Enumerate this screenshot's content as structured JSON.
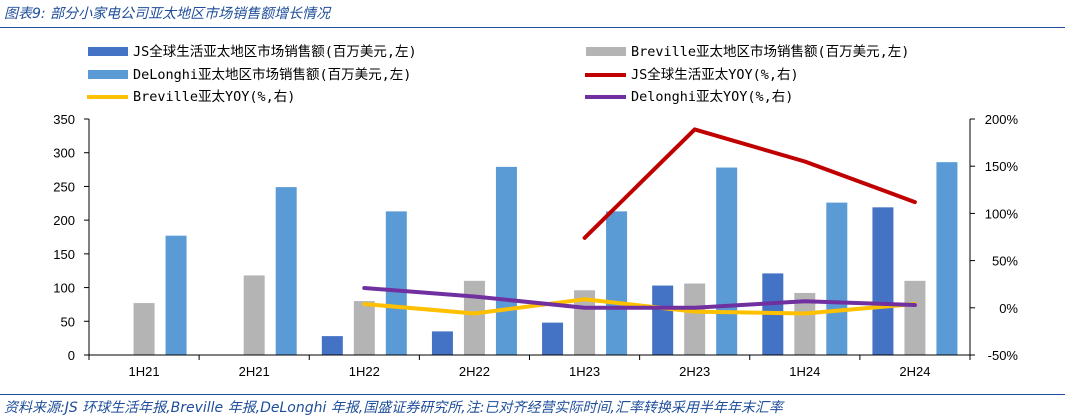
{
  "header": {
    "figure_title": "图表9:  部分小家电公司亚太地区市场销售额增长情况"
  },
  "footer": {
    "source_note": "资料来源:JS 环球生活年报,Breville 年报,DeLonghi 年报,国盛证券研究所,注:已对齐经营实际时间,汇率转换采用半年年末汇率"
  },
  "chart_data": {
    "type": "bar",
    "title": "部分小家电公司亚太地区市场销售额增长情况",
    "categories": [
      "1H21",
      "2H21",
      "1H22",
      "2H22",
      "1H23",
      "2H23",
      "1H24",
      "2H24"
    ],
    "ylim": [
      0,
      350
    ],
    "y_ticks": [
      0,
      50,
      100,
      150,
      200,
      250,
      300,
      350
    ],
    "y_tick_labels": [
      "0",
      "50",
      "100",
      "150",
      "200",
      "250",
      "300",
      "350"
    ],
    "y2lim": [
      -50,
      200
    ],
    "y2_ticks": [
      -50,
      0,
      50,
      100,
      150,
      200
    ],
    "y2_tick_labels": [
      "-50%",
      "0%",
      "50%",
      "100%",
      "150%",
      "200%"
    ],
    "series": [
      {
        "name": "JS全球生活亚太地区市场销售额(百万美元,左)",
        "kind": "bar",
        "axis": "left",
        "color": "#4472c4",
        "values": [
          null,
          null,
          28,
          35,
          48,
          103,
          121,
          219
        ]
      },
      {
        "name": "Breville亚太地区市场销售额(百万美元,左)",
        "kind": "bar",
        "axis": "left",
        "color": "#b4b4b4",
        "values": [
          77,
          118,
          80,
          110,
          96,
          106,
          92,
          110
        ]
      },
      {
        "name": "DeLonghi亚太地区市场销售额(百万美元,左)",
        "kind": "bar",
        "axis": "left",
        "color": "#5b9bd5",
        "values": [
          177,
          249,
          213,
          279,
          213,
          278,
          226,
          286
        ]
      },
      {
        "name": "JS全球生活亚太YOY(%,右)",
        "kind": "line",
        "axis": "right",
        "color": "#c00000",
        "values": [
          null,
          null,
          null,
          null,
          74,
          189,
          155,
          112
        ]
      },
      {
        "name": "Breville亚太YOY(%,右)",
        "kind": "line",
        "axis": "right",
        "color": "#ffc000",
        "values": [
          null,
          null,
          4,
          -6,
          9,
          -4,
          -6,
          4
        ]
      },
      {
        "name": "Delonghi亚太YOY(%,右)",
        "kind": "line",
        "axis": "right",
        "color": "#7030a0",
        "values": [
          null,
          null,
          21,
          12,
          0,
          0,
          7,
          3
        ]
      }
    ],
    "legend": [
      {
        "label": "JS全球生活亚太地区市场销售额(百万美元,左)",
        "kind": "bar",
        "color": "#4472c4"
      },
      {
        "label": "Breville亚太地区市场销售额(百万美元,左)",
        "kind": "bar",
        "color": "#b4b4b4"
      },
      {
        "label": "DeLonghi亚太地区市场销售额(百万美元,左)",
        "kind": "bar",
        "color": "#5b9bd5"
      },
      {
        "label": "JS全球生活亚太YOY(%,右)",
        "kind": "line",
        "color": "#c00000"
      },
      {
        "label": "Breville亚太YOY(%,右)",
        "kind": "line",
        "color": "#ffc000"
      },
      {
        "label": "Delonghi亚太YOY(%,右)",
        "kind": "line",
        "color": "#7030a0"
      }
    ],
    "legend_position": "top"
  }
}
